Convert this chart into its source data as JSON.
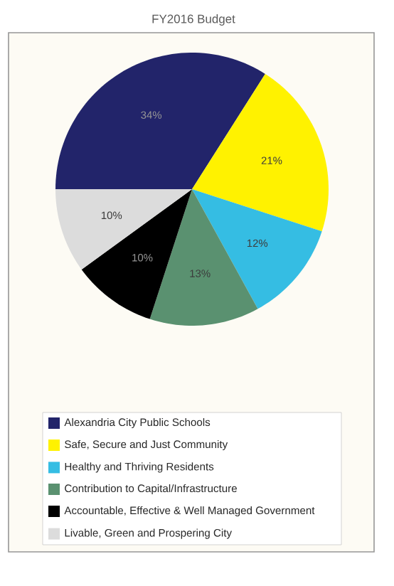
{
  "chart_data": {
    "type": "pie",
    "title": "FY2016 Budget",
    "categories": [
      "Alexandria City Public Schools",
      "Safe, Secure and Just Community",
      "Healthy and Thriving Residents",
      "Contribution to Capital/Infrastructure",
      "Accountable, Effective & Well Managed Government",
      "Livable, Green and Prospering City"
    ],
    "values": [
      34,
      21,
      12,
      13,
      10,
      10
    ],
    "value_labels": [
      "34%",
      "21%",
      "12%",
      "13%",
      "10%",
      "10%"
    ],
    "colors": [
      "#22246a",
      "#fff200",
      "#35bde3",
      "#5a9170",
      "#000000",
      "#dcdcdc"
    ],
    "legend": "bottom"
  }
}
